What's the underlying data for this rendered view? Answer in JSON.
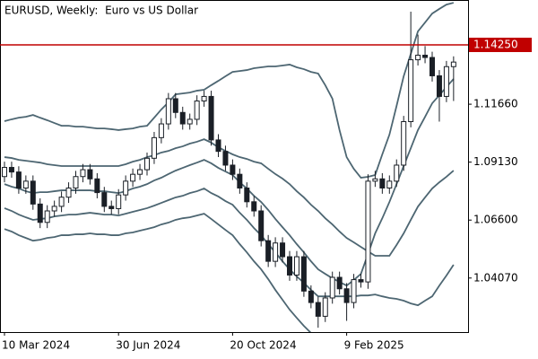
{
  "chart_data": {
    "type": "candlestick",
    "title": "EURUSD, Weekly:  Euro vs US Dollar",
    "categories": [
      "10 Mar 2024",
      null,
      null,
      null,
      null,
      null,
      null,
      null,
      null,
      null,
      null,
      null,
      null,
      null,
      null,
      null,
      "30 Jun 2024",
      null,
      null,
      null,
      null,
      null,
      null,
      null,
      null,
      null,
      null,
      null,
      null,
      null,
      null,
      null,
      "20 Oct 2024",
      null,
      null,
      null,
      null,
      null,
      null,
      null,
      null,
      null,
      null,
      null,
      null,
      null,
      null,
      null,
      "9 Feb 2025",
      null,
      null,
      null,
      null,
      null,
      null,
      null,
      null,
      null,
      null,
      null,
      null,
      null,
      null,
      null
    ],
    "open": [
      1.085,
      1.089,
      1.087,
      1.08,
      1.083,
      1.073,
      1.065,
      1.07,
      1.072,
      1.076,
      1.08,
      1.085,
      1.088,
      1.084,
      1.078,
      1.072,
      1.071,
      1.077,
      1.083,
      1.086,
      1.088,
      1.093,
      1.102,
      1.108,
      1.119,
      1.113,
      1.108,
      1.11,
      1.118,
      1.12,
      1.101,
      1.096,
      1.09,
      1.086,
      1.08,
      1.074,
      1.07,
      1.057,
      1.048,
      1.056,
      1.05,
      1.042,
      1.05,
      1.035,
      1.03,
      1.024,
      1.032,
      1.041,
      1.036,
      1.03,
      1.04,
      1.039,
      1.083,
      1.084,
      1.08,
      1.083,
      1.09,
      1.109,
      1.136,
      1.138,
      1.137,
      1.129,
      1.12,
      1.133
    ],
    "high": [
      1.0915,
      1.0915,
      1.0895,
      1.0855,
      1.0855,
      1.0755,
      1.0725,
      1.0745,
      1.0785,
      1.0825,
      1.0875,
      1.0905,
      1.0905,
      1.0865,
      1.0805,
      1.0745,
      1.0795,
      1.0855,
      1.0885,
      1.0905,
      1.0955,
      1.1045,
      1.1105,
      1.1215,
      1.1215,
      1.1155,
      1.1125,
      1.1205,
      1.1225,
      1.1225,
      1.1035,
      1.0985,
      1.0925,
      1.0885,
      1.0825,
      1.0765,
      1.0725,
      1.0595,
      1.0585,
      1.0585,
      1.0525,
      1.0525,
      1.0525,
      1.0375,
      1.0325,
      1.0345,
      1.0435,
      1.0435,
      1.0385,
      1.0425,
      1.0425,
      1.086,
      1.0875,
      1.0865,
      1.0855,
      1.0925,
      1.1115,
      1.157,
      1.147,
      1.142,
      1.1395,
      1.1315,
      1.1355,
      1.1375
    ],
    "low": [
      1.0825,
      1.0845,
      1.0775,
      1.0775,
      1.0705,
      1.0625,
      1.0625,
      1.0675,
      1.0695,
      1.0735,
      1.0775,
      1.0825,
      1.0815,
      1.0755,
      1.0695,
      1.0685,
      1.0685,
      1.0745,
      1.0805,
      1.0835,
      1.0855,
      1.0905,
      1.0995,
      1.1055,
      1.1105,
      1.1055,
      1.1055,
      1.1075,
      1.1155,
      1.0985,
      1.0935,
      1.0875,
      1.0835,
      1.0775,
      1.0715,
      1.0675,
      1.0545,
      1.0455,
      1.0455,
      1.0475,
      1.0395,
      1.0395,
      1.0325,
      1.0275,
      1.019,
      1.0215,
      1.0295,
      1.0335,
      1.022,
      1.0275,
      1.0365,
      1.036,
      1.0805,
      1.0775,
      1.0775,
      1.0805,
      1.0875,
      1.1065,
      1.1335,
      1.1345,
      1.1265,
      1.109,
      1.1175,
      1.118
    ],
    "close": [
      1.089,
      1.087,
      1.08,
      1.083,
      1.073,
      1.065,
      1.07,
      1.072,
      1.076,
      1.08,
      1.085,
      1.088,
      1.084,
      1.078,
      1.072,
      1.071,
      1.077,
      1.083,
      1.086,
      1.088,
      1.093,
      1.102,
      1.108,
      1.119,
      1.113,
      1.108,
      1.11,
      1.118,
      1.12,
      1.101,
      1.096,
      1.09,
      1.086,
      1.08,
      1.074,
      1.07,
      1.057,
      1.048,
      1.056,
      1.05,
      1.042,
      1.05,
      1.035,
      1.03,
      1.024,
      1.032,
      1.041,
      1.036,
      1.03,
      1.04,
      1.039,
      1.083,
      1.084,
      1.08,
      1.083,
      1.09,
      1.109,
      1.136,
      1.138,
      1.137,
      1.129,
      1.12,
      1.133,
      1.135
    ],
    "up_color": "#ffffff",
    "down_color": "#1a1f26",
    "outline_color": "#1a1f26",
    "bands": [
      {
        "color": "#4d6672",
        "values": [
          1.1092,
          1.11,
          1.1107,
          1.1111,
          1.1119,
          1.1107,
          1.1096,
          1.1084,
          1.1072,
          1.1072,
          1.1068,
          1.1068,
          1.1064,
          1.106,
          1.106,
          1.1057,
          1.1053,
          1.1057,
          1.106,
          1.1068,
          1.1072,
          1.1107,
          1.1143,
          1.1174,
          1.1209,
          1.1213,
          1.1217,
          1.1225,
          1.1229,
          1.1249,
          1.1268,
          1.1288,
          1.1307,
          1.1311,
          1.1315,
          1.1323,
          1.1327,
          1.1331,
          1.1331,
          1.1335,
          1.1339,
          1.1327,
          1.1319,
          1.1307,
          1.13,
          1.1249,
          1.119,
          1.1053,
          1.0935,
          1.0884,
          1.0845,
          1.0849,
          1.0857,
          1.0947,
          1.1033,
          1.1158,
          1.1288,
          1.1386,
          1.1484,
          1.1523,
          1.1562,
          1.1582,
          1.1601,
          1.1609
        ]
      },
      {
        "color": "#4d6672",
        "values": [
          1.0935,
          1.0931,
          1.0923,
          1.0919,
          1.0915,
          1.0911,
          1.0904,
          1.09,
          1.0896,
          1.0896,
          1.0896,
          1.0896,
          1.0896,
          1.0896,
          1.0896,
          1.0896,
          1.0896,
          1.0904,
          1.0915,
          1.0923,
          1.0935,
          1.0943,
          1.0955,
          1.0962,
          1.0974,
          1.0982,
          1.0994,
          1.1002,
          1.1013,
          1.0998,
          1.0978,
          1.0962,
          1.0947,
          1.0935,
          1.0927,
          1.0915,
          1.0908,
          1.0884,
          1.0861,
          1.0841,
          1.0817,
          1.0786,
          1.0759,
          1.0727,
          1.07,
          1.0668,
          1.0641,
          1.061,
          1.0582,
          1.0563,
          1.0543,
          1.0523,
          1.0504,
          1.0504,
          1.0504,
          1.0551,
          1.0602,
          1.0661,
          1.0719,
          1.0759,
          1.0798,
          1.0825,
          1.0849,
          1.0876
        ]
      },
      {
        "color": "#4d6672",
        "values": [
          1.0817,
          1.0806,
          1.0798,
          1.0786,
          1.0778,
          1.0782,
          1.0782,
          1.0786,
          1.079,
          1.079,
          1.079,
          1.079,
          1.079,
          1.0786,
          1.0786,
          1.0782,
          1.0778,
          1.0786,
          1.0798,
          1.0806,
          1.0817,
          1.0833,
          1.0845,
          1.0861,
          1.0876,
          1.0888,
          1.09,
          1.0911,
          1.0923,
          1.0908,
          1.0888,
          1.0872,
          1.0857,
          1.0825,
          1.0798,
          1.0766,
          1.0739,
          1.0704,
          1.0665,
          1.0629,
          1.0594,
          1.0555,
          1.0519,
          1.048,
          1.0445,
          1.0425,
          1.0406,
          1.039,
          1.0374,
          1.0398,
          1.0425,
          1.0512,
          1.0602,
          1.0668,
          1.0739,
          1.0817,
          1.0896,
          1.0974,
          1.1053,
          1.1111,
          1.117,
          1.1205,
          1.1241,
          1.1276
        ]
      },
      {
        "color": "#4d6672",
        "values": [
          1.0712,
          1.07,
          1.0684,
          1.0672,
          1.0661,
          1.0665,
          1.0668,
          1.0676,
          1.068,
          1.0684,
          1.0684,
          1.0688,
          1.0692,
          1.0688,
          1.0684,
          1.0684,
          1.068,
          1.0688,
          1.0696,
          1.0704,
          1.0712,
          1.0723,
          1.0735,
          1.0747,
          1.0759,
          1.0766,
          1.0778,
          1.0786,
          1.0798,
          1.0778,
          1.0763,
          1.0743,
          1.0727,
          1.0692,
          1.0661,
          1.0625,
          1.0594,
          1.0555,
          1.0519,
          1.048,
          1.0445,
          1.0414,
          1.0386,
          1.0355,
          1.0327,
          1.0327,
          1.0327,
          1.0327,
          1.0327,
          1.0327,
          1.0331,
          1.0331,
          1.0335,
          1.0327,
          1.032,
          1.0316,
          1.0308,
          1.0296,
          1.0288,
          1.0308,
          1.0327,
          1.0374,
          1.0418,
          1.0465
        ]
      },
      {
        "color": "#4d6672",
        "values": [
          1.0621,
          1.061,
          1.0594,
          1.0582,
          1.057,
          1.0574,
          1.0582,
          1.0586,
          1.0594,
          1.0594,
          1.0598,
          1.0598,
          1.0602,
          1.0598,
          1.0598,
          1.0594,
          1.0594,
          1.0602,
          1.0606,
          1.0614,
          1.0621,
          1.0629,
          1.0641,
          1.0649,
          1.0661,
          1.0668,
          1.0672,
          1.068,
          1.0688,
          1.0665,
          1.0641,
          1.0617,
          1.0594,
          1.0555,
          1.0519,
          1.048,
          1.0445,
          1.0402,
          1.0355,
          1.0312,
          1.0269,
          1.0233,
          1.0198,
          1.0167,
          1.0131,
          1.0116,
          1.01,
          1.0088,
          1.0073,
          1.008,
          1.0092,
          1.01,
          1.0112,
          1.01,
          1.0092,
          1.008,
          1.0073,
          1.0077,
          1.008,
          1.0088,
          1.0092,
          1.0104,
          1.012,
          1.0131
        ]
      }
    ],
    "hline": {
      "value": 1.1425,
      "label": "1.14250",
      "color": "#c00000"
    },
    "ylim": [
      1.0171,
      1.1621
    ],
    "yticks": [
      {
        "value": 1.0407,
        "label": "1.04070"
      },
      {
        "value": 1.066,
        "label": "1.06600"
      },
      {
        "value": 1.0913,
        "label": "1.09130"
      },
      {
        "value": 1.1166,
        "label": "1.11660"
      }
    ]
  }
}
